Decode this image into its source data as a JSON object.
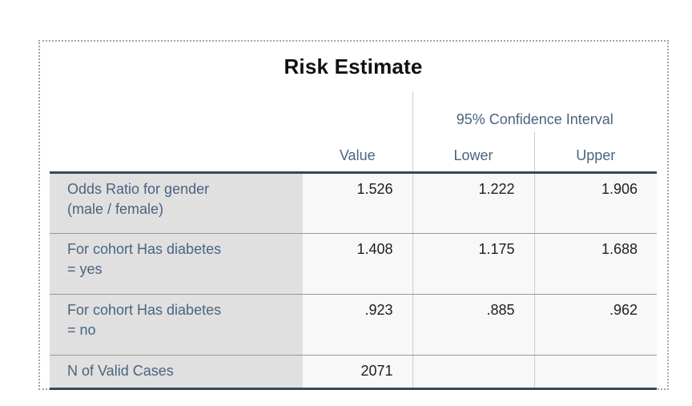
{
  "pivot_table": {
    "title": "Risk Estimate",
    "columns": {
      "value": "Value",
      "ci_group": "95% Confidence Interval",
      "ci_lower": "Lower",
      "ci_upper": "Upper"
    },
    "rows": [
      {
        "label_line1": "Odds Ratio for gender",
        "label_line2": "(male / female)",
        "value": "1.526",
        "lower": "1.222",
        "upper": "1.906"
      },
      {
        "label_line1": "For cohort Has diabetes",
        "label_line2": "= yes",
        "value": "1.408",
        "lower": "1.175",
        "upper": "1.688"
      },
      {
        "label_line1": "For cohort Has diabetes",
        "label_line2": "= no",
        "value": ".923",
        "lower": ".885",
        "upper": ".962"
      },
      {
        "label_line1": "N of Valid Cases",
        "label_line2": "",
        "value": "2071",
        "lower": "",
        "upper": ""
      }
    ],
    "colors": {
      "title_text": "#111111",
      "header_text": "#4a647f",
      "label_text": "#4a647f",
      "number_text": "#202020",
      "label_bg": "#e0e0e0",
      "data_bg": "#f8f8f9",
      "heavy_rule": "#36495a",
      "thin_rule": "#989898",
      "column_rule": "#c8ccd0",
      "selection_dots": "#a4a4a4"
    }
  }
}
